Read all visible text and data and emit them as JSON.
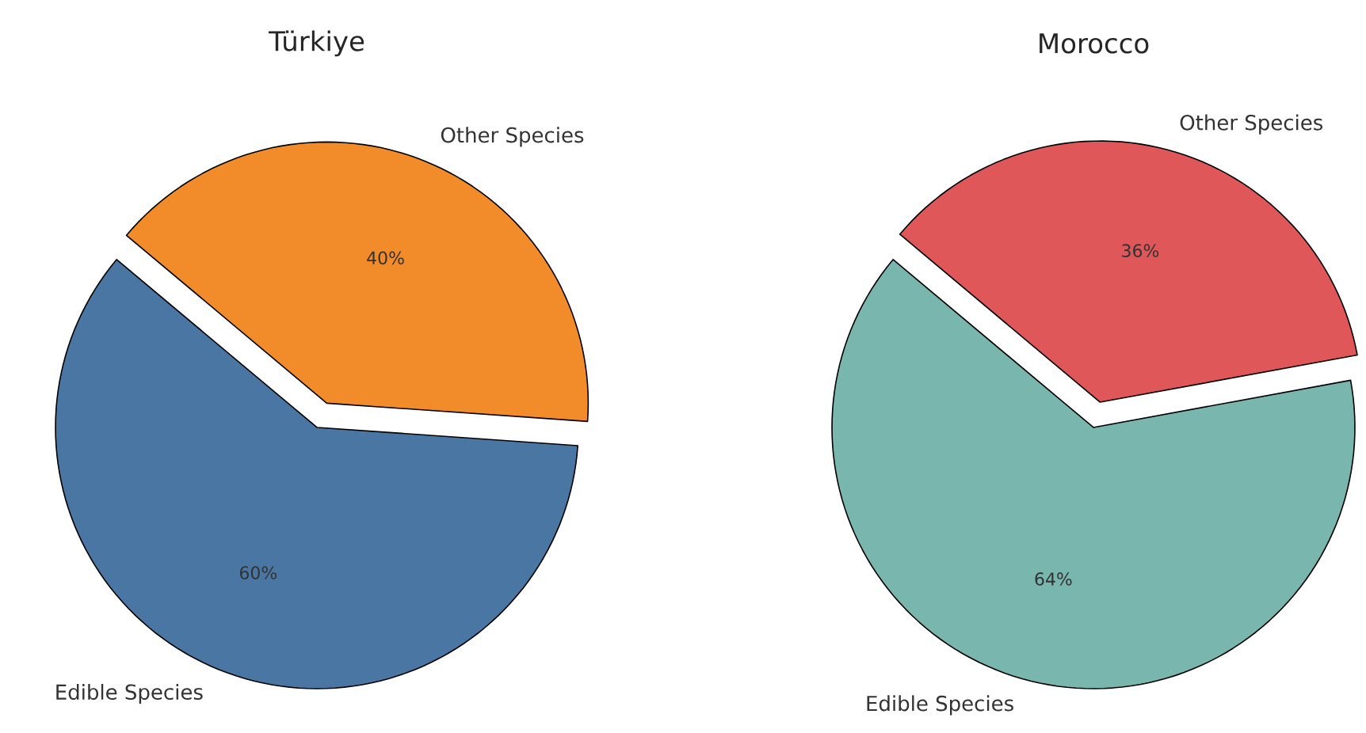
{
  "chart_data": [
    {
      "type": "pie",
      "title": "Türkiye",
      "categories": [
        "Edible Species",
        "Other Species"
      ],
      "values": [
        60,
        40
      ],
      "colors": [
        "#4a76a4",
        "#f28c2b"
      ],
      "value_labels": [
        "60%",
        "40%"
      ]
    },
    {
      "type": "pie",
      "title": "Morocco",
      "categories": [
        "Edible Species",
        "Other Species"
      ],
      "values": [
        64,
        36
      ],
      "colors": [
        "#79b6ae",
        "#e0575a"
      ],
      "value_labels": [
        "64%",
        "36%"
      ]
    }
  ]
}
